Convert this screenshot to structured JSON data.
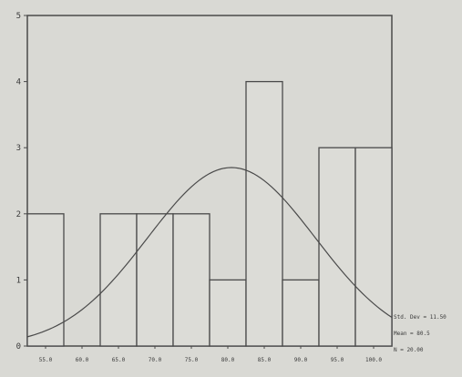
{
  "chart_data": {
    "type": "bar",
    "categories": [
      "55.0",
      "60.0",
      "65.0",
      "70.0",
      "75.0",
      "80.0",
      "85.0",
      "90.0",
      "95.0",
      "100.0"
    ],
    "category_labels": [
      "55.0",
      "60.0",
      "65.0",
      "70.0",
      "75.0",
      "80.0",
      "85.0",
      "90.0",
      "95.0",
      "100.0"
    ],
    "values": [
      2,
      0,
      2,
      2,
      2,
      1,
      4,
      1,
      3,
      3
    ],
    "ylim": [
      0,
      5
    ],
    "yticks": [
      0,
      1,
      2,
      3,
      4,
      5
    ],
    "xlim": [
      52.5,
      102.5
    ],
    "curve": {
      "type": "normal",
      "mean": 80.5,
      "std_dev": 11.5,
      "scale": 2.7
    },
    "stats": {
      "std_dev_label": "Std. Dev = 11.50",
      "mean_label": "Mean = 80.5",
      "n_label": "N = 20.00"
    },
    "grid": false,
    "colors": {
      "background": "#d9d9d4",
      "bar_fill": "#dcdcd7",
      "line": "#4a4a4a"
    }
  }
}
